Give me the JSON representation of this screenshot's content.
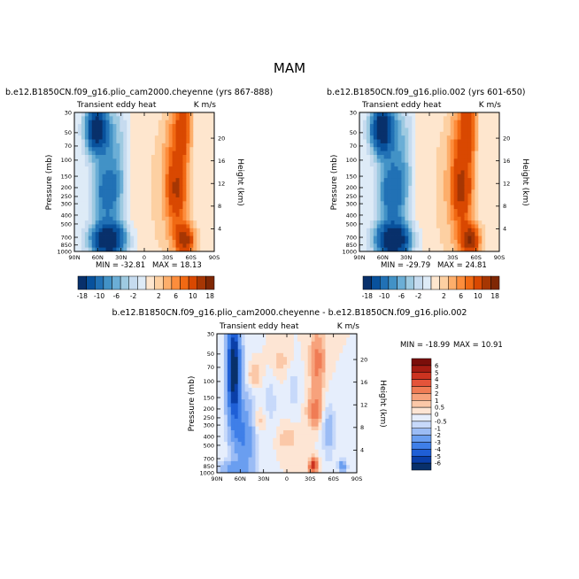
{
  "title": "MAM",
  "colors": {
    "panel": [
      "#08306b",
      "#08519c",
      "#2171b5",
      "#4292c6",
      "#6baed6",
      "#9ecae1",
      "#c6dbef",
      "#deebf7",
      "#fee6ce",
      "#fdd0a2",
      "#fdae6b",
      "#fd8d3c",
      "#f16913",
      "#d94801",
      "#a63603",
      "#7f2704"
    ],
    "diff": [
      "#08306b",
      "#0a3fa8",
      "#1f5fd6",
      "#3f7fe8",
      "#6a9ef0",
      "#9bbcf5",
      "#c7d9fa",
      "#e6eefc",
      "#fde5d4",
      "#fbc8a8",
      "#f7a27c",
      "#f07c55",
      "#e4543a",
      "#cc3320",
      "#a51c12",
      "#7a0e0a"
    ]
  },
  "chart_data": [
    {
      "type": "heatmap",
      "name": "cheyenne",
      "title": "b.e12.B1850CN.f09_g16.plio_cam2000.cheyenne (yrs 867-888)",
      "subtitle_left": "Transient eddy heat",
      "subtitle_right": "K m/s",
      "ylabel": "Pressure (mb)",
      "ylabel_right": "Height (km)",
      "x_ticks": [
        "90N",
        "60N",
        "30N",
        "0",
        "30S",
        "60S",
        "90S"
      ],
      "y_ticks": [
        "30",
        "50",
        "70",
        "100",
        "150",
        "200",
        "250",
        "300",
        "400",
        "500",
        "700",
        "850",
        "1000"
      ],
      "y_right_ticks": [
        "20",
        "16",
        "12",
        "8",
        "4"
      ],
      "min_label": "MIN = -32.81",
      "max_label": "MAX = 18.13",
      "min": -32.81,
      "max": 18.13,
      "colorbar_ticks": [
        "-18",
        "-10",
        "-6",
        "-2",
        "2",
        "6",
        "10",
        "18"
      ],
      "colorbar_levels": [
        -18,
        -14,
        -10,
        -8,
        -6,
        -4,
        -2,
        -1,
        1,
        2,
        4,
        6,
        8,
        10,
        14,
        18
      ]
    },
    {
      "type": "heatmap",
      "name": "plio002",
      "title": "b.e12.B1850CN.f09_g16.plio.002 (yrs 601-650)",
      "subtitle_left": "Transient eddy heat",
      "subtitle_right": "K m/s",
      "ylabel": "Pressure (mb)",
      "ylabel_right": "Height (km)",
      "x_ticks": [
        "90N",
        "60N",
        "30N",
        "0",
        "30S",
        "60S",
        "90S"
      ],
      "y_ticks": [
        "30",
        "50",
        "70",
        "100",
        "150",
        "200",
        "250",
        "300",
        "400",
        "500",
        "700",
        "850",
        "1000"
      ],
      "y_right_ticks": [
        "20",
        "16",
        "12",
        "8",
        "4"
      ],
      "min_label": "MIN = -29.79",
      "max_label": "MAX = 24.81",
      "min": -29.79,
      "max": 24.81,
      "colorbar_ticks": [
        "-18",
        "-10",
        "-6",
        "-2",
        "2",
        "6",
        "10",
        "18"
      ],
      "colorbar_levels": [
        -18,
        -14,
        -10,
        -8,
        -6,
        -4,
        -2,
        -1,
        1,
        2,
        4,
        6,
        8,
        10,
        14,
        18
      ]
    },
    {
      "type": "heatmap",
      "name": "difference",
      "title": "b.e12.B1850CN.f09_g16.plio_cam2000.cheyenne - b.e12.B1850CN.f09_g16.plio.002",
      "subtitle_left": "Transient eddy heat",
      "subtitle_right": "K m/s",
      "ylabel": "Pressure (mb)",
      "ylabel_right": "Height (km)",
      "x_ticks": [
        "90N",
        "60N",
        "30N",
        "0",
        "30S",
        "60S",
        "90S"
      ],
      "y_ticks": [
        "30",
        "50",
        "70",
        "100",
        "150",
        "200",
        "250",
        "300",
        "400",
        "500",
        "700",
        "850",
        "1000"
      ],
      "y_right_ticks": [
        "20",
        "16",
        "12",
        "8",
        "4"
      ],
      "min_label": "MIN = -18.99",
      "max_label": "MAX = 10.91",
      "min": -18.99,
      "max": 10.91,
      "colorbar_ticks": [
        "6",
        "5",
        "4",
        "3",
        "2",
        "1",
        "0.5",
        "0",
        "-0.5",
        "-1",
        "-2",
        "-3",
        "-4",
        "-5",
        "-6"
      ],
      "colorbar_levels": [
        -6,
        -5,
        -4,
        -3,
        -2,
        -1,
        -0.5,
        0,
        0.5,
        1,
        2,
        3,
        4,
        5,
        6
      ]
    }
  ]
}
